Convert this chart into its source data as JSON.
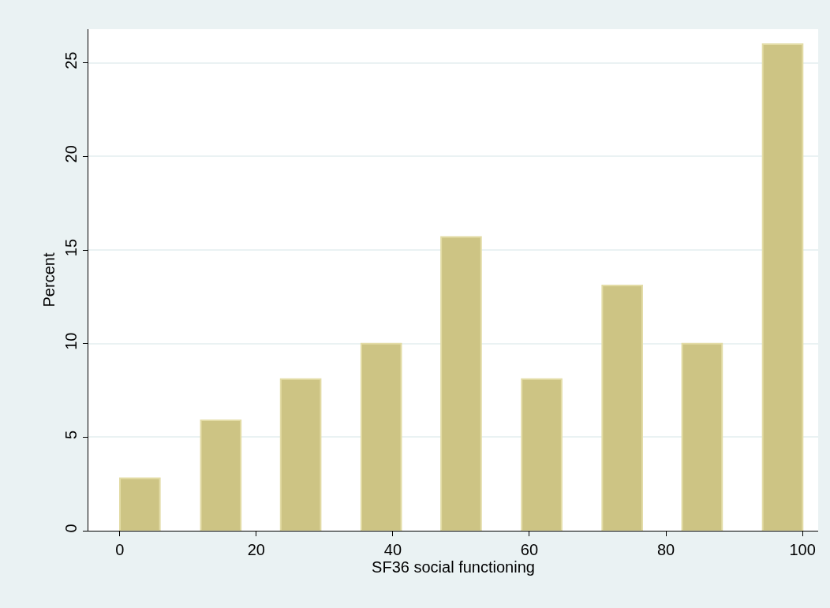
{
  "chart_data": {
    "type": "bar",
    "xlabel": "SF36 social functioning",
    "ylabel": "Percent",
    "x": [
      2.95,
      14.8,
      26.5,
      38.3,
      50,
      61.8,
      73.6,
      85.3,
      97.1
    ],
    "values": [
      2.8,
      5.9,
      8.1,
      10.0,
      15.7,
      8.1,
      13.1,
      10.0,
      26.0
    ],
    "color": "#cdc484",
    "xlim": [
      -4.6,
      102.3
    ],
    "xticks": [
      0,
      20,
      40,
      60,
      80,
      100
    ],
    "ylim": [
      0,
      26.8
    ],
    "yticks": [
      0,
      5,
      10,
      15,
      20,
      25
    ],
    "grid": "y"
  }
}
